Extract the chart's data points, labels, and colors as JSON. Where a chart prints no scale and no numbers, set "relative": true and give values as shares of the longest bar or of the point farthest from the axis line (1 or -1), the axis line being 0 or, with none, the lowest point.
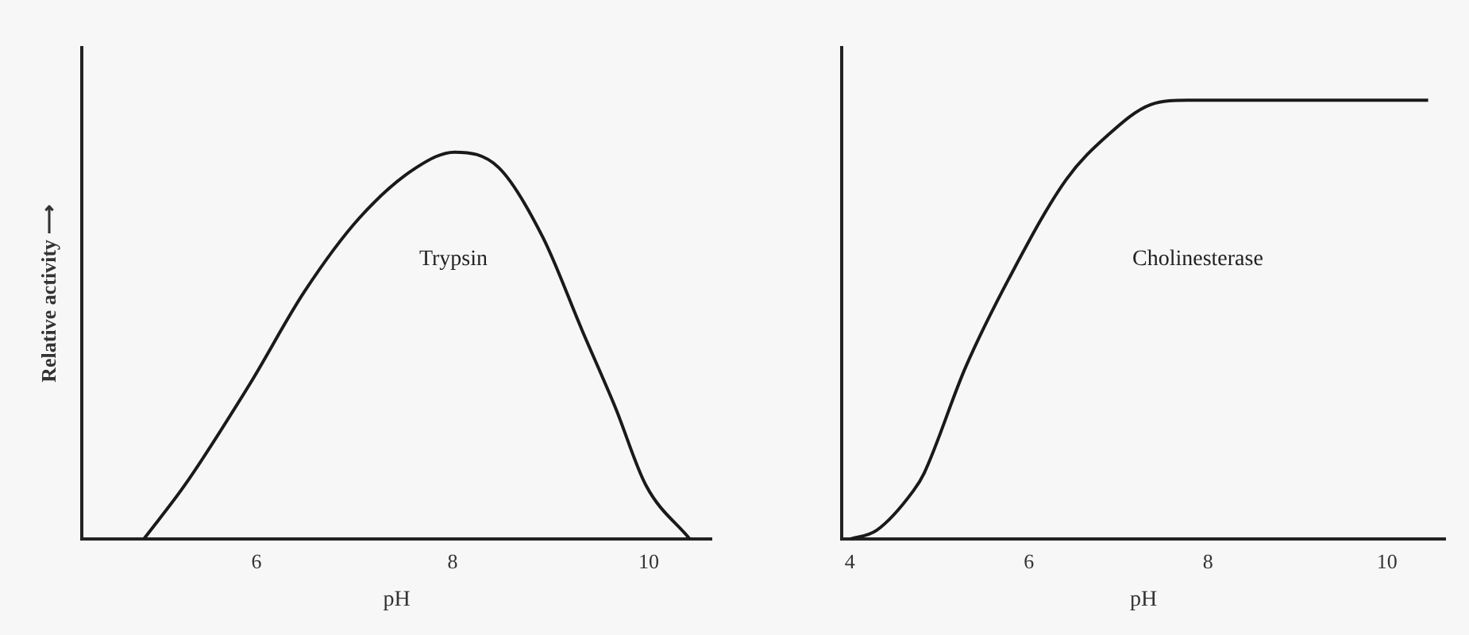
{
  "chart_data": [
    {
      "type": "line",
      "relative": true,
      "ylabel": "Relative activity ⟶",
      "xlabel": "pH",
      "xlim": [
        4.22,
        10.64
      ],
      "xticks": [
        6,
        8,
        10
      ],
      "grid": false,
      "legend": false,
      "marker": "none",
      "line_style": "solid",
      "annotations": [
        "Trypsin"
      ],
      "series": [
        {
          "color": "#1a1a1a",
          "x": [
            4.85,
            5.27,
            5.93,
            6.49,
            7.05,
            7.63,
            8.02,
            8.47,
            8.92,
            9.32,
            9.66,
            9.97,
            10.42
          ],
          "values": [
            0,
            0.14,
            0.4,
            0.64,
            0.83,
            0.96,
            1,
            0.96,
            0.78,
            0.54,
            0.34,
            0.14,
            0
          ]
        }
      ]
    },
    {
      "type": "line",
      "relative": true,
      "xlabel": "pH",
      "xlim": [
        3.91,
        10.65
      ],
      "xticks": [
        4,
        6,
        8,
        10
      ],
      "grid": false,
      "legend": false,
      "marker": "none",
      "line_style": "solid",
      "annotations": [
        "Cholinesterase"
      ],
      "series": [
        {
          "color": "#1a1a1a",
          "x": [
            4.0,
            4.3,
            4.71,
            4.83,
            5.29,
            5.82,
            6.42,
            6.88,
            7.36,
            7.77,
            10.46
          ],
          "values": [
            0,
            0.02,
            0.11,
            0.15,
            0.39,
            0.61,
            0.82,
            0.92,
            0.99,
            1,
            1
          ]
        }
      ]
    }
  ]
}
